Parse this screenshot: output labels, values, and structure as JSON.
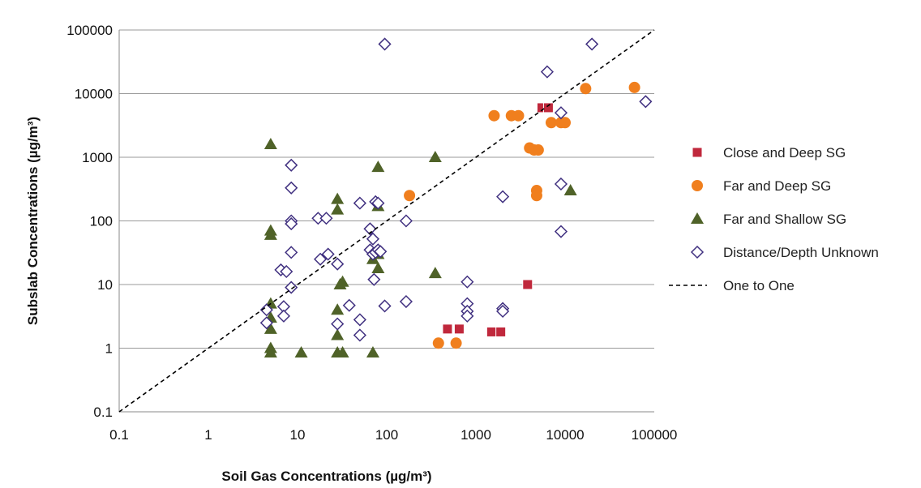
{
  "chart_data": {
    "type": "scatter",
    "title": "",
    "xlabel": "Soil Gas Concentrations (µg/m³)",
    "ylabel": "Subslab Concentrations (µg/m³)",
    "xscale": "log",
    "yscale": "log",
    "xlim": [
      0.1,
      100000
    ],
    "ylim": [
      0.1,
      100000
    ],
    "xticks": [
      "0.1",
      "1",
      "10",
      "100",
      "1000",
      "10000",
      "100000"
    ],
    "yticks": [
      "0.1",
      "1",
      "10",
      "100",
      "1000",
      "10000",
      "100000"
    ],
    "grid": "horizontal",
    "legend_position": "right",
    "series": [
      {
        "name": "Close and Deep SG",
        "marker": "square",
        "color": "#c0283c",
        "points": [
          [
            5500,
            6000
          ],
          [
            6500,
            6000
          ],
          [
            3800,
            10
          ],
          [
            480,
            2
          ],
          [
            650,
            2
          ],
          [
            1500,
            1.8
          ],
          [
            1900,
            1.8
          ]
        ]
      },
      {
        "name": "Far and Deep SG",
        "marker": "circle",
        "color": "#f07f1e",
        "points": [
          [
            1600,
            4500
          ],
          [
            2500,
            4500
          ],
          [
            3000,
            4500
          ],
          [
            7000,
            3500
          ],
          [
            9000,
            3500
          ],
          [
            10000,
            3500
          ],
          [
            4000,
            1400
          ],
          [
            4500,
            1300
          ],
          [
            5000,
            1300
          ],
          [
            4800,
            300
          ],
          [
            4800,
            250
          ],
          [
            17000,
            12000
          ],
          [
            60000,
            12500
          ],
          [
            180,
            250
          ],
          [
            380,
            1.2
          ],
          [
            600,
            1.2
          ]
        ]
      },
      {
        "name": "Far and Shallow SG",
        "marker": "triangle",
        "color": "#4f6228",
        "points": [
          [
            5,
            1600
          ],
          [
            5,
            60
          ],
          [
            5,
            70
          ],
          [
            5,
            5
          ],
          [
            5,
            3
          ],
          [
            5,
            2
          ],
          [
            5,
            1
          ],
          [
            5,
            0.85
          ],
          [
            11,
            0.85
          ],
          [
            28,
            220
          ],
          [
            28,
            150
          ],
          [
            28,
            4
          ],
          [
            28,
            1.6
          ],
          [
            28,
            0.85
          ],
          [
            32,
            0.85
          ],
          [
            32,
            11
          ],
          [
            30,
            10
          ],
          [
            70,
            25
          ],
          [
            70,
            0.85
          ],
          [
            80,
            700
          ],
          [
            80,
            170
          ],
          [
            80,
            30
          ],
          [
            80,
            18
          ],
          [
            350,
            1000
          ],
          [
            350,
            15
          ],
          [
            11500,
            300
          ]
        ]
      },
      {
        "name": "Distance/Depth Unknown",
        "marker": "diamond",
        "color": "#403080",
        "points": [
          [
            95,
            60000
          ],
          [
            20000,
            60000
          ],
          [
            6300,
            22000
          ],
          [
            9000,
            5000
          ],
          [
            80000,
            7500
          ],
          [
            2000,
            240
          ],
          [
            9000,
            380
          ],
          [
            9000,
            68
          ],
          [
            8.5,
            750
          ],
          [
            8.5,
            330
          ],
          [
            8.5,
            100
          ],
          [
            8.5,
            90
          ],
          [
            17,
            110
          ],
          [
            21,
            110
          ],
          [
            50,
            190
          ],
          [
            75,
            200
          ],
          [
            80,
            190
          ],
          [
            165,
            100
          ],
          [
            8.5,
            32
          ],
          [
            6.5,
            17
          ],
          [
            7.5,
            16
          ],
          [
            18,
            25
          ],
          [
            22,
            30
          ],
          [
            28,
            21
          ],
          [
            65,
            75
          ],
          [
            70,
            52
          ],
          [
            65,
            35
          ],
          [
            70,
            30
          ],
          [
            75,
            32
          ],
          [
            80,
            35
          ],
          [
            85,
            33
          ],
          [
            72,
            12
          ],
          [
            8.5,
            9
          ],
          [
            7,
            4.5
          ],
          [
            7,
            3.2
          ],
          [
            4.5,
            4
          ],
          [
            4.5,
            2.5
          ],
          [
            28,
            2.4
          ],
          [
            38,
            4.7
          ],
          [
            50,
            2.8
          ],
          [
            50,
            1.6
          ],
          [
            95,
            4.6
          ],
          [
            165,
            5.4
          ],
          [
            800,
            11
          ],
          [
            800,
            5
          ],
          [
            800,
            3.8
          ],
          [
            800,
            3.2
          ],
          [
            2000,
            4.2
          ],
          [
            2000,
            3.8
          ]
        ]
      },
      {
        "name": "One to One",
        "marker": "dashed-line",
        "color": "#000000",
        "points": [
          [
            0.1,
            0.1
          ],
          [
            100000,
            100000
          ]
        ]
      }
    ]
  }
}
